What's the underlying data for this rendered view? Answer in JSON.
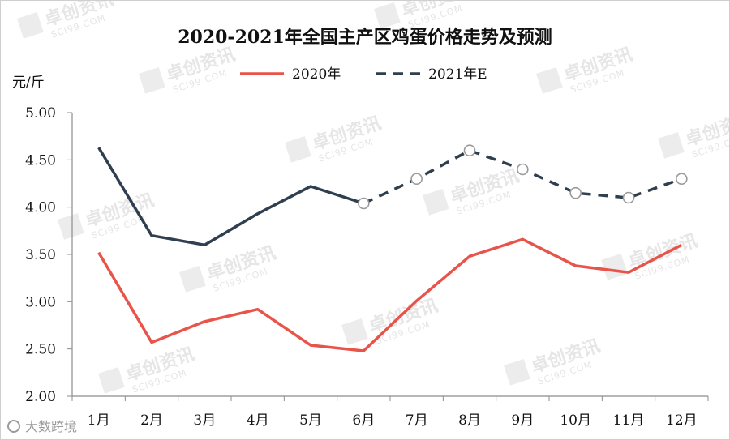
{
  "chart_data": {
    "type": "line",
    "title": "2020-2021年全国主产区鸡蛋价格走势及预测",
    "ylabel": "元/斤",
    "xlabel": "",
    "categories": [
      "1月",
      "2月",
      "3月",
      "4月",
      "5月",
      "6月",
      "7月",
      "8月",
      "9月",
      "10月",
      "11月",
      "12月"
    ],
    "ylim": [
      2.0,
      5.0
    ],
    "yticks": [
      "2.00",
      "2.50",
      "3.00",
      "3.50",
      "4.00",
      "4.50",
      "5.00"
    ],
    "grid": false,
    "legend_position": "top-center",
    "series": [
      {
        "name": "2020年",
        "color": "#e8544a",
        "style": "solid",
        "values": [
          3.52,
          2.57,
          2.79,
          2.92,
          2.54,
          2.48,
          3.01,
          3.48,
          3.66,
          3.38,
          3.31,
          3.6
        ]
      },
      {
        "name": "2021年E",
        "color": "#2f3f4f",
        "style": "solid-then-dashed",
        "dashed_from_index": 5,
        "marker_from_index": 5,
        "values": [
          4.63,
          3.7,
          3.6,
          3.93,
          4.22,
          4.04,
          4.3,
          4.6,
          4.4,
          4.15,
          4.1,
          4.3
        ]
      }
    ]
  },
  "watermark": {
    "main": "卓创资讯",
    "sub": "SCI99.COM"
  },
  "corner_watermark": "大数跨境"
}
